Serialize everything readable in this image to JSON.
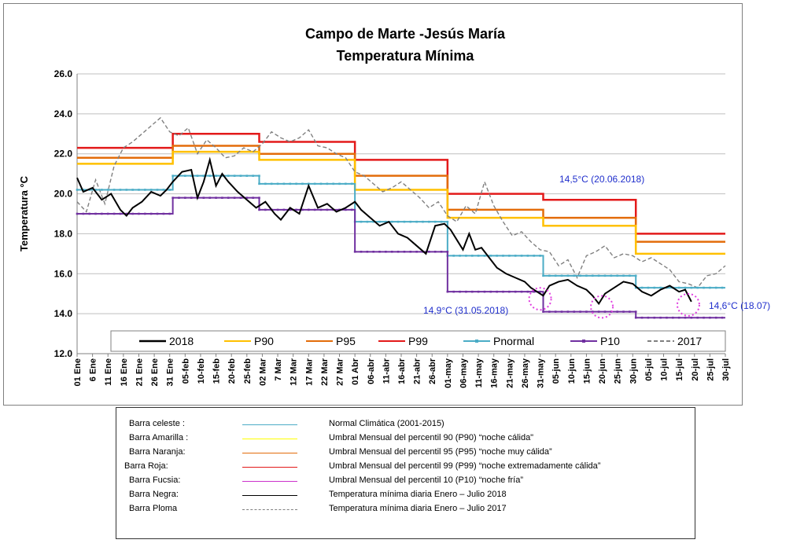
{
  "chart_data": {
    "type": "line",
    "title": "Campo de Marte -Jesús María",
    "subtitle": "Temperatura Mínima",
    "ylabel": "Temperatura °C",
    "xlabel": "",
    "ylim": [
      12.0,
      26.0
    ],
    "yticks": [
      "12.0",
      "14.0",
      "16.0",
      "18.0",
      "20.0",
      "22.0",
      "24.0",
      "26.0"
    ],
    "grid": true,
    "legend_position": "bottom",
    "x_ticks": [
      "01 Ene",
      "6 Ene",
      "11 Ene",
      "16 Ene",
      "21 Ene",
      "26 Ene",
      "31 Ene",
      "05-feb",
      "10-feb",
      "15-feb",
      "20-feb",
      "25-feb",
      "02 Mar",
      "7 Mar",
      "12 Mar",
      "17 Mar",
      "22 Mar",
      "27 Mar",
      "01 Abr",
      "06-abr",
      "11-abr",
      "16-abr",
      "21-abr",
      "26-abr",
      "01-may",
      "06-may",
      "11-may",
      "16-may",
      "21-may",
      "26-may",
      "31-may",
      "05-jun",
      "10-jun",
      "15-jun",
      "20-jun",
      "25-jun",
      "30-jun",
      "05-jul",
      "10-jul",
      "15-jul",
      "20-jul",
      "25-jul",
      "30-jul"
    ],
    "x_day_range": [
      1,
      211
    ],
    "month_start_days": [
      1,
      32,
      60,
      91,
      121,
      152,
      182
    ],
    "colors": {
      "2018": "#000000",
      "P90": "#ffc000",
      "P95": "#e36c0a",
      "P99": "#e31a1a",
      "Pnormal": "#4bacc6",
      "P10": "#7030a0",
      "2017": "#808080"
    },
    "series": [
      {
        "name": "2018",
        "style": "solid-thick",
        "points": [
          [
            1,
            20.8
          ],
          [
            3,
            20.1
          ],
          [
            6,
            20.3
          ],
          [
            9,
            19.7
          ],
          [
            12,
            20.0
          ],
          [
            15,
            19.2
          ],
          [
            17,
            18.9
          ],
          [
            19,
            19.3
          ],
          [
            22,
            19.6
          ],
          [
            25,
            20.1
          ],
          [
            28,
            19.9
          ],
          [
            30,
            20.2
          ],
          [
            32,
            20.6
          ],
          [
            35,
            21.1
          ],
          [
            38,
            21.2
          ],
          [
            40,
            19.8
          ],
          [
            42,
            20.6
          ],
          [
            44,
            21.7
          ],
          [
            46,
            20.4
          ],
          [
            48,
            21.0
          ],
          [
            50,
            20.6
          ],
          [
            53,
            20.1
          ],
          [
            56,
            19.7
          ],
          [
            59,
            19.3
          ],
          [
            62,
            19.6
          ],
          [
            65,
            19.0
          ],
          [
            67,
            18.7
          ],
          [
            70,
            19.3
          ],
          [
            73,
            19.0
          ],
          [
            76,
            20.4
          ],
          [
            79,
            19.3
          ],
          [
            82,
            19.5
          ],
          [
            85,
            19.1
          ],
          [
            88,
            19.3
          ],
          [
            91,
            19.6
          ],
          [
            93,
            19.2
          ],
          [
            96,
            18.8
          ],
          [
            99,
            18.4
          ],
          [
            102,
            18.6
          ],
          [
            105,
            18.0
          ],
          [
            108,
            17.8
          ],
          [
            111,
            17.4
          ],
          [
            114,
            17.0
          ],
          [
            117,
            18.4
          ],
          [
            120,
            18.5
          ],
          [
            122,
            18.2
          ],
          [
            124,
            17.7
          ],
          [
            126,
            17.2
          ],
          [
            128,
            18.0
          ],
          [
            130,
            17.2
          ],
          [
            132,
            17.3
          ],
          [
            134,
            16.9
          ],
          [
            137,
            16.3
          ],
          [
            140,
            16.0
          ],
          [
            143,
            15.8
          ],
          [
            146,
            15.6
          ],
          [
            148,
            15.3
          ],
          [
            150,
            15.1
          ],
          [
            152,
            14.9
          ],
          [
            154,
            15.4
          ],
          [
            157,
            15.6
          ],
          [
            160,
            15.7
          ],
          [
            163,
            15.4
          ],
          [
            166,
            15.2
          ],
          [
            168,
            14.9
          ],
          [
            170,
            14.5
          ],
          [
            172,
            15.0
          ],
          [
            175,
            15.3
          ],
          [
            178,
            15.6
          ],
          [
            181,
            15.5
          ],
          [
            184,
            15.1
          ],
          [
            187,
            14.9
          ],
          [
            190,
            15.2
          ],
          [
            193,
            15.4
          ],
          [
            196,
            15.1
          ],
          [
            198,
            15.2
          ],
          [
            200,
            14.6
          ]
        ]
      },
      {
        "name": "P90",
        "style": "step",
        "monthly": [
          21.5,
          22.1,
          21.7,
          20.2,
          18.8,
          18.4,
          17.0
        ]
      },
      {
        "name": "P95",
        "style": "step",
        "monthly": [
          21.8,
          22.4,
          22.0,
          20.9,
          19.2,
          18.8,
          17.6
        ]
      },
      {
        "name": "P99",
        "style": "step",
        "monthly": [
          22.3,
          23.0,
          22.6,
          21.7,
          20.0,
          19.7,
          18.0
        ]
      },
      {
        "name": "Pnormal",
        "style": "step-marker",
        "monthly": [
          20.2,
          20.9,
          20.5,
          18.6,
          16.9,
          15.9,
          15.3
        ]
      },
      {
        "name": "P10",
        "style": "step-marker",
        "monthly": [
          19.0,
          19.8,
          19.2,
          17.1,
          15.1,
          14.1,
          13.8
        ]
      },
      {
        "name": "2017",
        "style": "dashed",
        "points": [
          [
            1,
            19.6
          ],
          [
            4,
            19.1
          ],
          [
            7,
            20.7
          ],
          [
            10,
            19.5
          ],
          [
            13,
            21.4
          ],
          [
            16,
            22.3
          ],
          [
            19,
            22.6
          ],
          [
            22,
            23.0
          ],
          [
            25,
            23.4
          ],
          [
            28,
            23.8
          ],
          [
            31,
            23.1
          ],
          [
            34,
            22.9
          ],
          [
            37,
            23.3
          ],
          [
            40,
            22.0
          ],
          [
            43,
            22.7
          ],
          [
            46,
            22.3
          ],
          [
            49,
            21.8
          ],
          [
            52,
            21.9
          ],
          [
            55,
            22.3
          ],
          [
            58,
            22.1
          ],
          [
            61,
            22.5
          ],
          [
            64,
            23.1
          ],
          [
            67,
            22.8
          ],
          [
            70,
            22.6
          ],
          [
            73,
            22.8
          ],
          [
            76,
            23.2
          ],
          [
            79,
            22.4
          ],
          [
            82,
            22.3
          ],
          [
            85,
            22.0
          ],
          [
            88,
            21.8
          ],
          [
            91,
            21.1
          ],
          [
            94,
            20.9
          ],
          [
            97,
            20.5
          ],
          [
            100,
            20.1
          ],
          [
            103,
            20.3
          ],
          [
            106,
            20.6
          ],
          [
            109,
            20.2
          ],
          [
            112,
            19.8
          ],
          [
            115,
            19.3
          ],
          [
            118,
            19.6
          ],
          [
            121,
            18.9
          ],
          [
            124,
            18.6
          ],
          [
            127,
            19.4
          ],
          [
            130,
            19.0
          ],
          [
            133,
            20.6
          ],
          [
            136,
            19.4
          ],
          [
            139,
            18.6
          ],
          [
            142,
            17.9
          ],
          [
            145,
            18.1
          ],
          [
            148,
            17.6
          ],
          [
            151,
            17.2
          ],
          [
            154,
            17.1
          ],
          [
            157,
            16.4
          ],
          [
            160,
            16.7
          ],
          [
            163,
            15.8
          ],
          [
            166,
            16.9
          ],
          [
            169,
            17.1
          ],
          [
            172,
            17.4
          ],
          [
            175,
            16.8
          ],
          [
            178,
            17.0
          ],
          [
            181,
            16.9
          ],
          [
            184,
            16.6
          ],
          [
            187,
            16.8
          ],
          [
            190,
            16.5
          ],
          [
            193,
            16.2
          ],
          [
            196,
            15.6
          ],
          [
            199,
            15.5
          ],
          [
            202,
            15.3
          ],
          [
            205,
            15.9
          ],
          [
            208,
            16.0
          ],
          [
            211,
            16.4
          ]
        ]
      }
    ],
    "annotations": [
      {
        "id": "a1",
        "text": "14,5°C (20.06.2018)"
      },
      {
        "id": "a2",
        "text": "14,9°C (31.05.2018)"
      },
      {
        "id": "a3",
        "text": "14,6°C (18.07)"
      }
    ],
    "highlight_circles": [
      {
        "day": 151,
        "value": 14.9,
        "color": "#e040e0"
      },
      {
        "day": 171,
        "value": 14.5,
        "color": "#e040e0"
      },
      {
        "day": 199,
        "value": 14.6,
        "color": "#e040e0"
      }
    ]
  },
  "caption": {
    "rows": [
      {
        "name": "Barra celeste :",
        "color": "#4bacc6",
        "dashed": false,
        "desc": "Normal Climática (2001-2015)"
      },
      {
        "name": "Barra Amarilla :",
        "color": "#ffff00",
        "dashed": false,
        "desc": "Umbral Mensual del percentil 90 (P90) “noche cálida\""
      },
      {
        "name": "Barra Naranja:",
        "color": "#e36c0a",
        "dashed": false,
        "desc": "Umbral Mensual del percentil 95 (P95) “noche muy cálida”"
      },
      {
        "name": "Barra Roja:",
        "color": "#e31a1a",
        "dashed": false,
        "desc": "Umbral Mensual del percentil 99 (P99) “noche extremadamente cálida”"
      },
      {
        "name": "Barra Fucsia:",
        "color": "#cc33cc",
        "dashed": false,
        "desc": "Umbral Mensual del percentil 10 (P10) “noche fría”"
      },
      {
        "name": "Barra Negra:",
        "color": "#000000",
        "dashed": false,
        "desc": "Temperatura mínima diaria  Enero – Julio 2018"
      },
      {
        "name": "Barra Ploma",
        "color": "#808080",
        "dashed": true,
        "desc": "Temperatura mínima diaria Enero – Julio 2017"
      }
    ]
  }
}
